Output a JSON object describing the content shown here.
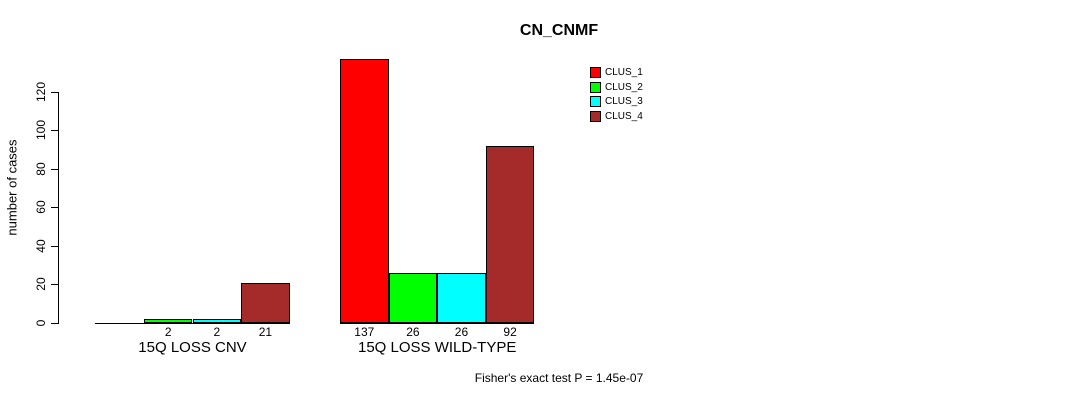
{
  "chart_data": {
    "type": "bar",
    "title": "CN_CNMF",
    "ylabel": "number of cases",
    "xlabel": "",
    "ylim": [
      0,
      137
    ],
    "yticks": [
      0,
      20,
      40,
      60,
      80,
      100,
      120
    ],
    "grid": false,
    "legend_position": "top-right",
    "categories": [
      "15Q LOSS CNV",
      "15Q LOSS WILD-TYPE"
    ],
    "series": [
      {
        "name": "CLUS_1",
        "color": "#FF0000",
        "values": [
          0,
          137
        ]
      },
      {
        "name": "CLUS_2",
        "color": "#00FF00",
        "values": [
          2,
          26
        ]
      },
      {
        "name": "CLUS_3",
        "color": "#00FFFF",
        "values": [
          2,
          26
        ]
      },
      {
        "name": "CLUS_4",
        "color": "#A52A2A",
        "values": [
          21,
          92
        ]
      }
    ],
    "bar_value_labels": [
      "",
      "2",
      "2",
      "21",
      "137",
      "26",
      "26",
      "92"
    ],
    "annotation": "Fisher's exact test P = 1.45e-07"
  }
}
